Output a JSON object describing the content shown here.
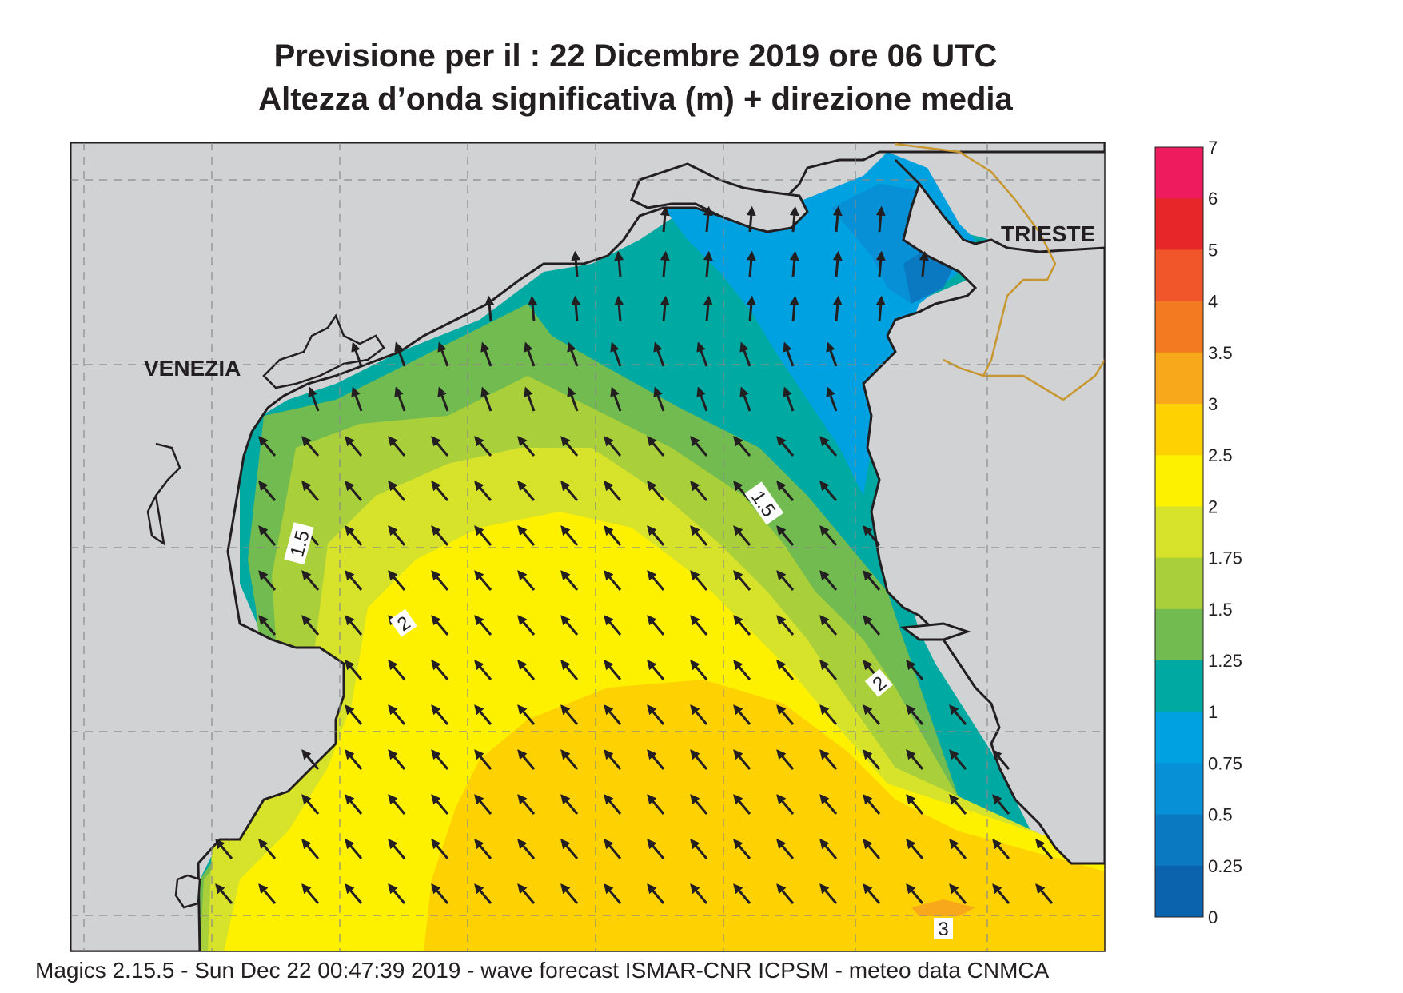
{
  "header": {
    "title_line1": "Previsione per il  :  22 Dicembre  2019   ore 06 UTC",
    "title_line2": "Altezza d’onda significativa (m) + direzione media"
  },
  "map": {
    "place_labels": [
      "VENEZIA",
      "TRIESTE"
    ],
    "contour_labels": [
      "1.5",
      "1.5",
      "2",
      "2",
      "3"
    ],
    "gridlines": "dashed",
    "arrow_direction": "north-west"
  },
  "legend": {
    "ticks": [
      "7",
      "6",
      "5",
      "4",
      "3.5",
      "3",
      "2.5",
      "2",
      "1.75",
      "1.5",
      "1.25",
      "1",
      "0.75",
      "0.5",
      "0.25",
      "0"
    ],
    "colors": [
      "#ee1c5f",
      "#e7262a",
      "#f0562a",
      "#f37a21",
      "#f8a81b",
      "#fed103",
      "#fdf100",
      "#d7e22b",
      "#a9cf3b",
      "#72bb50",
      "#00a9a2",
      "#00a1e0",
      "#0890d6",
      "#0a79c2",
      "#0b63ae"
    ]
  },
  "footer": {
    "text": "Magics 2.15.5 - Sun Dec 22 00:47:39 2019 - wave forecast  ISMAR-CNR  ICPSM - meteo data   CNMCA"
  }
}
